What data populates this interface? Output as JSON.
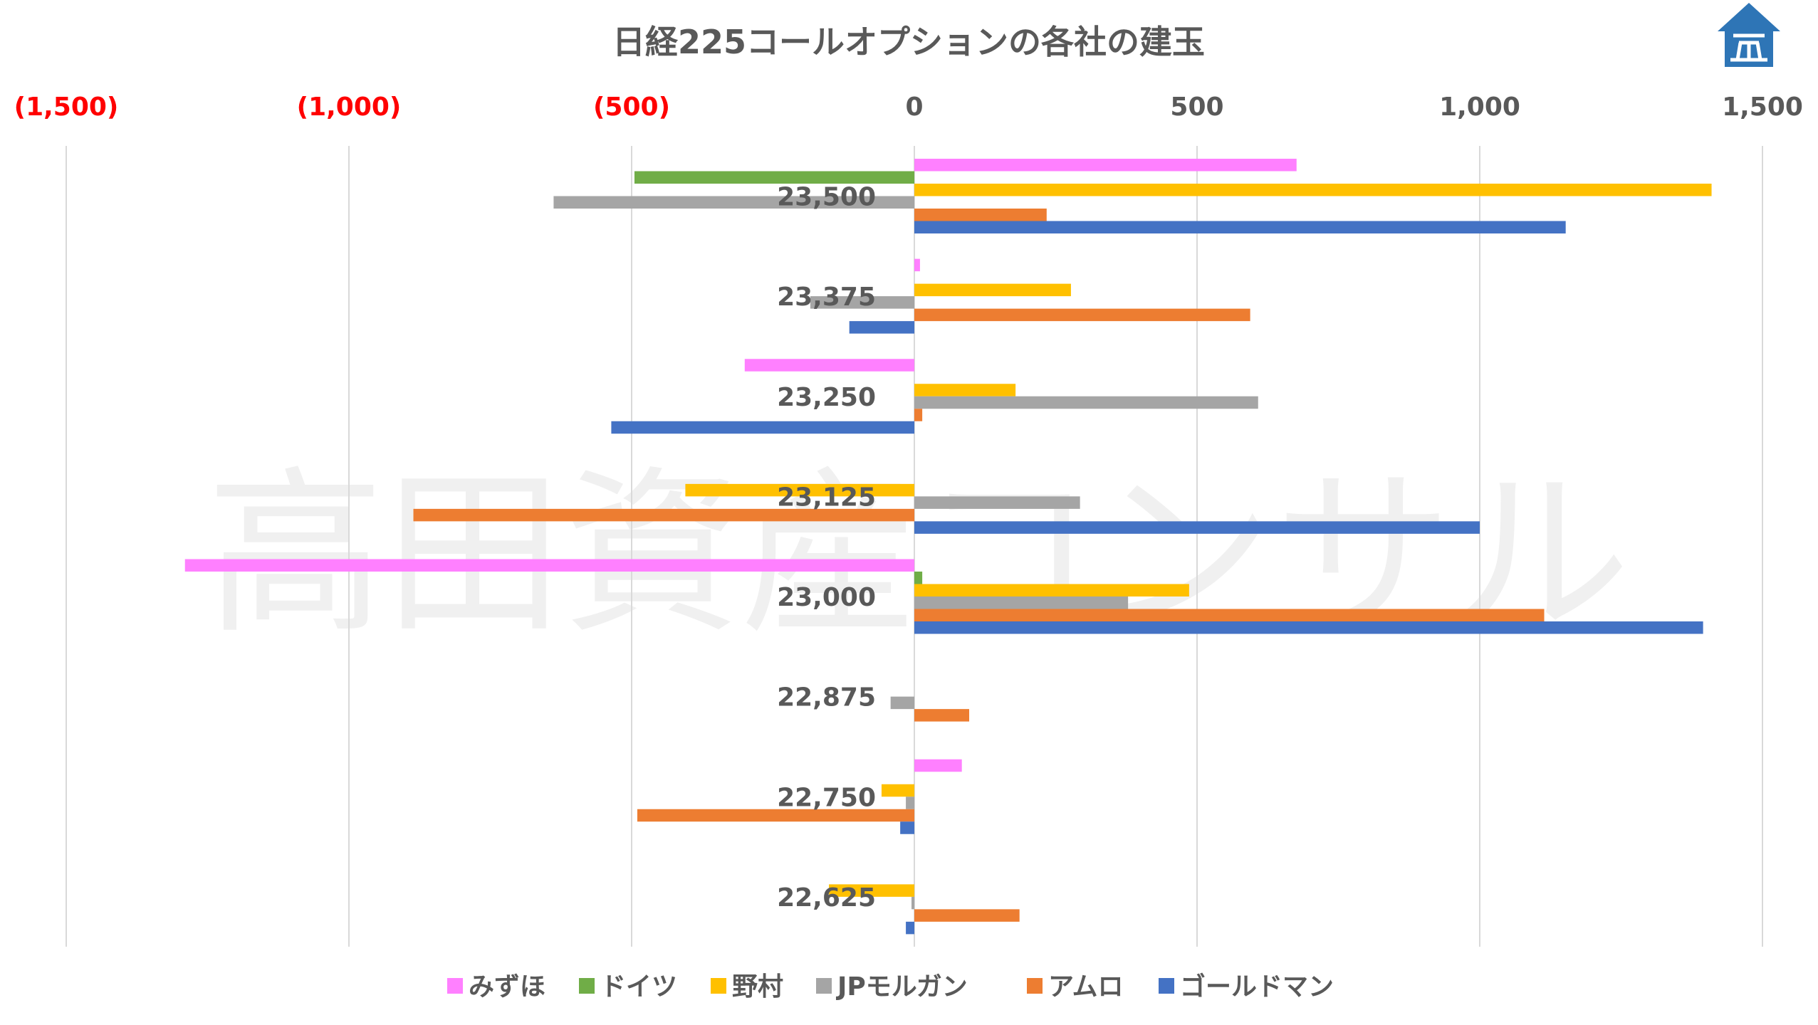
{
  "chart_data": {
    "type": "bar",
    "orientation": "horizontal",
    "title": "日経225コールオプションの各社の建玉",
    "categories": [
      "23,500",
      "23,375",
      "23,250",
      "23,125",
      "23,000",
      "22,875",
      "22,750",
      "22,625"
    ],
    "xlim": [
      -1500,
      1500
    ],
    "x_ticks": [
      {
        "value": -1500,
        "label": "(1,500)"
      },
      {
        "value": -1000,
        "label": "(1,000)"
      },
      {
        "value": -500,
        "label": "(500)"
      },
      {
        "value": 0,
        "label": "0"
      },
      {
        "value": 500,
        "label": "500"
      },
      {
        "value": 1000,
        "label": "1,000"
      },
      {
        "value": 1500,
        "label": "1,500"
      }
    ],
    "series": [
      {
        "name": "みずほ",
        "color": "#ff80ff",
        "values": [
          676,
          10,
          -300,
          0,
          -1290,
          0,
          84,
          0
        ]
      },
      {
        "name": "ドイツ",
        "color": "#70ad47",
        "values": [
          -495,
          0,
          0,
          0,
          14,
          0,
          0,
          0
        ]
      },
      {
        "name": "野村",
        "color": "#ffc000",
        "values": [
          1410,
          277,
          179,
          -405,
          486,
          0,
          -58,
          -151
        ]
      },
      {
        "name": "JPモルガン",
        "color": "#a5a5a5",
        "values": [
          -638,
          -184,
          608,
          293,
          378,
          -42,
          -15,
          -5
        ]
      },
      {
        "name": "アムロ",
        "color": "#ed7d31",
        "values": [
          234,
          594,
          14,
          -886,
          1114,
          97,
          -490,
          186
        ]
      },
      {
        "name": "ゴールドマン",
        "color": "#4472c4",
        "values": [
          1152,
          -115,
          -536,
          1000,
          1395,
          0,
          -25,
          -15
        ]
      }
    ],
    "negative_tick_color": "#ff0000",
    "positive_tick_color": "#595959",
    "grid": true,
    "legend_position": "bottom"
  },
  "watermark_text": "高田資産コンサル",
  "logo_icon": "building-logo-icon"
}
